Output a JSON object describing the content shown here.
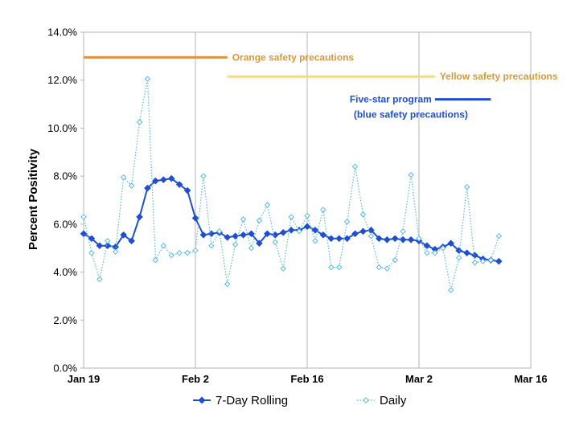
{
  "chart_data": {
    "type": "line",
    "xlabel": "",
    "ylabel": "Percent Positivity",
    "x_tick_labels": [
      "Jan 19",
      "Feb 2",
      "Feb 16",
      "Mar 2",
      "Mar 16"
    ],
    "x_range": [
      "2021-01-19",
      "2021-03-16"
    ],
    "y_tick_labels": [
      "0.0%",
      "2.0%",
      "4.0%",
      "6.0%",
      "8.0%",
      "10.0%",
      "12.0%",
      "14.0%"
    ],
    "ylim": [
      0,
      14
    ],
    "grid": "vertical",
    "legend_position": "bottom",
    "start_date": "2021-01-19",
    "series": [
      {
        "name": "7-Day Rolling",
        "color": "#1f4fd0",
        "marker": "diamond-filled",
        "line": "solid",
        "values": [
          5.6,
          5.4,
          5.1,
          5.1,
          5.05,
          5.55,
          5.3,
          6.3,
          7.5,
          7.8,
          7.85,
          7.9,
          7.65,
          7.4,
          6.25,
          5.55,
          5.6,
          5.65,
          5.45,
          5.5,
          5.55,
          5.6,
          5.2,
          5.6,
          5.55,
          5.65,
          5.75,
          5.75,
          5.9,
          5.75,
          5.55,
          5.4,
          5.4,
          5.4,
          5.6,
          5.7,
          5.75,
          5.4,
          5.35,
          5.4,
          5.35,
          5.35,
          5.3,
          5.1,
          4.95,
          5.05,
          5.2,
          4.9,
          4.8,
          4.7,
          4.55,
          4.5,
          4.45
        ]
      },
      {
        "name": "Daily",
        "color": "#5ab8e8",
        "marker": "diamond-open",
        "line": "dotted",
        "values": [
          6.3,
          4.8,
          3.7,
          5.3,
          4.85,
          7.95,
          7.6,
          10.25,
          12.05,
          4.5,
          5.1,
          4.7,
          4.8,
          4.8,
          4.9,
          8.0,
          5.1,
          5.7,
          3.5,
          5.15,
          6.2,
          5.0,
          6.15,
          6.8,
          5.25,
          4.15,
          6.3,
          5.7,
          6.35,
          5.3,
          6.6,
          4.2,
          4.2,
          6.1,
          8.4,
          6.4,
          5.5,
          4.2,
          4.15,
          4.5,
          5.7,
          8.05,
          5.4,
          4.8,
          4.8,
          5.0,
          3.25,
          4.6,
          7.55,
          4.4,
          4.45,
          4.5,
          5.5
        ]
      }
    ],
    "annotations": [
      {
        "label": "Orange safety precautions",
        "color": "#e3913b",
        "start": "2021-01-19",
        "end": "2021-02-06",
        "y": 12.95
      },
      {
        "label": "Yellow safety precautions",
        "color": "#f7d88e",
        "start": "2021-02-06",
        "end": "2021-03-04",
        "y": 12.15
      },
      {
        "label": "Five-star program\n(blue safety precautions)",
        "color": "#1f4fd0",
        "start": "2021-03-04",
        "end": "2021-03-11",
        "y": 11.2
      }
    ]
  }
}
